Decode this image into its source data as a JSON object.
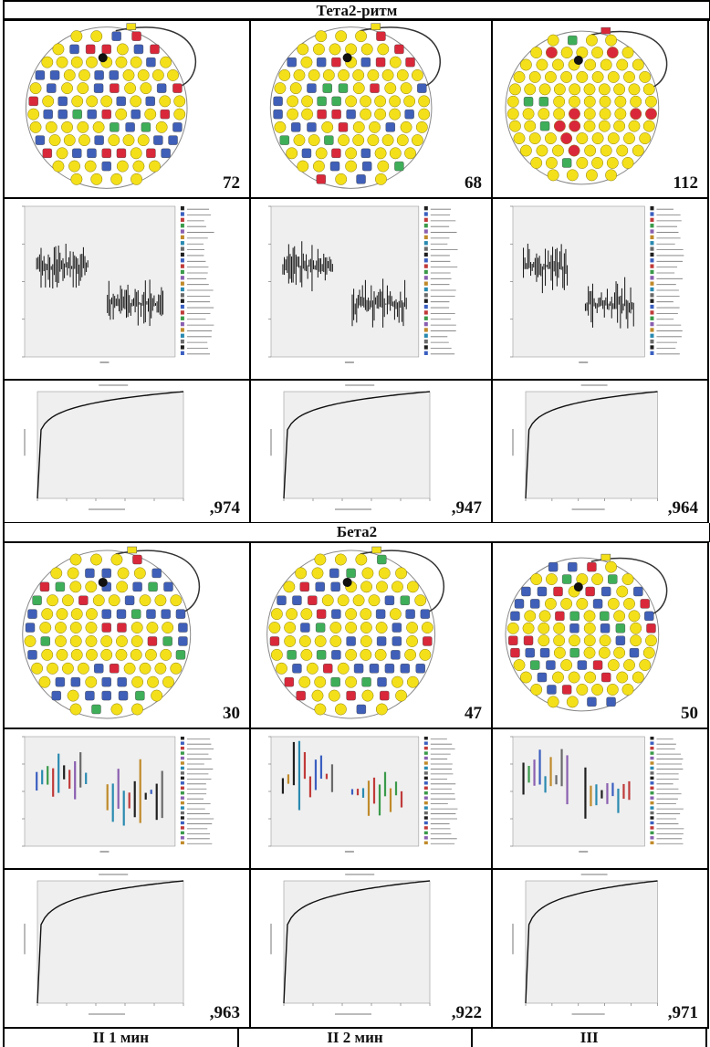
{
  "headers": {
    "theta2": "Тета2-ритм",
    "beta2": "Бета2"
  },
  "theta2": {
    "connectivity_counts": [
      "72",
      "68",
      "112"
    ],
    "roc_auc": [
      ",974",
      ",947",
      ",964"
    ]
  },
  "beta2": {
    "connectivity_counts": [
      "30",
      "47",
      "50"
    ],
    "roc_auc": [
      ",963",
      ",922",
      ",971"
    ]
  },
  "columns": [
    "II 1 мин",
    "II 2 мин",
    "III"
  ],
  "colors": {
    "electrode_yellow": "#f3e01a",
    "electrode_blue": "#3f5fb8",
    "electrode_red": "#d9283a",
    "electrode_green": "#3fae59",
    "plot_bg": "#efefef"
  }
}
